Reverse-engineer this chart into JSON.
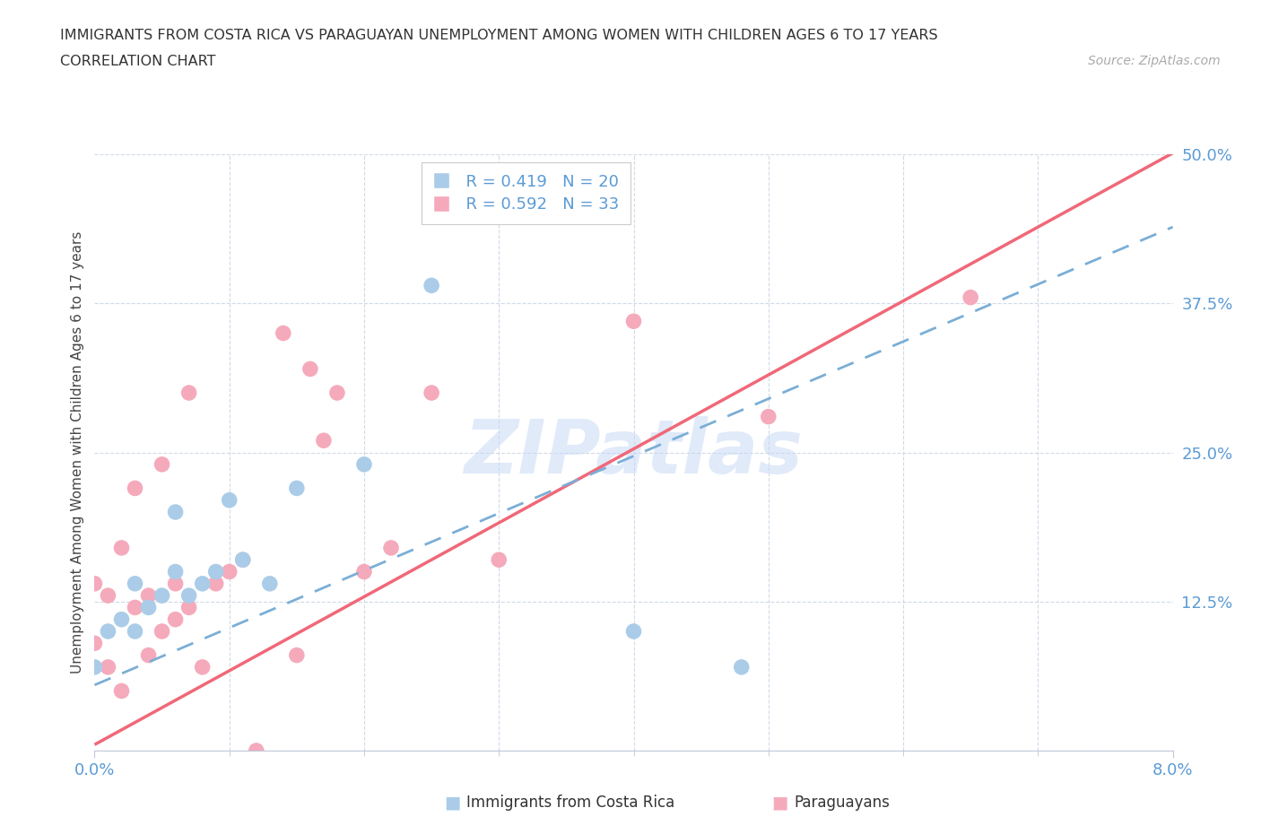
{
  "title_line1": "IMMIGRANTS FROM COSTA RICA VS PARAGUAYAN UNEMPLOYMENT AMONG WOMEN WITH CHILDREN AGES 6 TO 17 YEARS",
  "title_line2": "CORRELATION CHART",
  "source_text": "Source: ZipAtlas.com",
  "ylabel": "Unemployment Among Women with Children Ages 6 to 17 years",
  "xmin": 0.0,
  "xmax": 0.08,
  "ymin": 0.0,
  "ymax": 0.5,
  "yticks": [
    0.0,
    0.125,
    0.25,
    0.375,
    0.5
  ],
  "ytick_labels": [
    "",
    "12.5%",
    "25.0%",
    "37.5%",
    "50.0%"
  ],
  "xtick_left_label": "0.0%",
  "xtick_right_label": "8.0%",
  "legend_blue_r": "R = 0.419",
  "legend_blue_n": "N = 20",
  "legend_pink_r": "R = 0.592",
  "legend_pink_n": "N = 33",
  "blue_scatter_color": "#aacce8",
  "blue_line_color": "#7aaed6",
  "pink_scatter_color": "#f5aabb",
  "pink_line_color": "#f06878",
  "label_color": "#5b9bd5",
  "watermark_text": "ZIPatlas",
  "bottom_legend_label1": "Immigrants from Costa Rica",
  "bottom_legend_label2": "Paraguayans",
  "blue_line_intercept": 0.055,
  "blue_line_slope": 4.8,
  "pink_line_intercept": 0.005,
  "pink_line_slope": 6.2,
  "costa_rica_x": [
    0.0,
    0.001,
    0.002,
    0.003,
    0.003,
    0.004,
    0.005,
    0.006,
    0.006,
    0.007,
    0.008,
    0.009,
    0.01,
    0.011,
    0.013,
    0.015,
    0.02,
    0.025,
    0.04,
    0.048
  ],
  "costa_rica_y": [
    0.07,
    0.1,
    0.11,
    0.1,
    0.14,
    0.12,
    0.13,
    0.15,
    0.2,
    0.13,
    0.14,
    0.15,
    0.21,
    0.16,
    0.14,
    0.22,
    0.24,
    0.39,
    0.1,
    0.07
  ],
  "paraguayan_x": [
    0.0,
    0.0,
    0.001,
    0.001,
    0.002,
    0.002,
    0.003,
    0.003,
    0.004,
    0.004,
    0.005,
    0.005,
    0.006,
    0.006,
    0.007,
    0.007,
    0.008,
    0.009,
    0.01,
    0.011,
    0.012,
    0.014,
    0.015,
    0.016,
    0.017,
    0.018,
    0.02,
    0.022,
    0.025,
    0.03,
    0.04,
    0.05,
    0.065
  ],
  "paraguayan_y": [
    0.09,
    0.14,
    0.07,
    0.13,
    0.05,
    0.17,
    0.12,
    0.22,
    0.08,
    0.13,
    0.1,
    0.24,
    0.11,
    0.14,
    0.12,
    0.3,
    0.07,
    0.14,
    0.15,
    0.16,
    0.0,
    0.35,
    0.08,
    0.32,
    0.26,
    0.3,
    0.15,
    0.17,
    0.3,
    0.16,
    0.36,
    0.28,
    0.38
  ]
}
